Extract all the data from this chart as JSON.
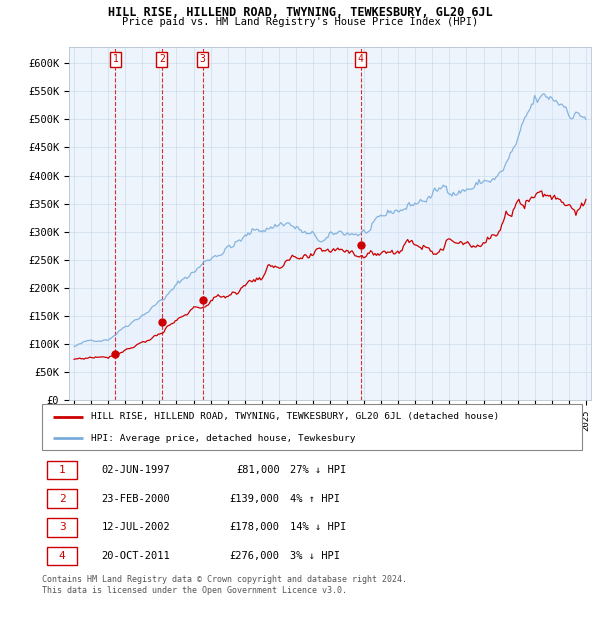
{
  "title": "HILL RISE, HILLEND ROAD, TWYNING, TEWKESBURY, GL20 6JL",
  "subtitle": "Price paid vs. HM Land Registry's House Price Index (HPI)",
  "xlim": [
    1994.7,
    2025.3
  ],
  "ylim": [
    0,
    630000
  ],
  "yticks": [
    0,
    50000,
    100000,
    150000,
    200000,
    250000,
    300000,
    350000,
    400000,
    450000,
    500000,
    550000,
    600000
  ],
  "ytick_labels": [
    "£0",
    "£50K",
    "£100K",
    "£150K",
    "£200K",
    "£250K",
    "£300K",
    "£350K",
    "£400K",
    "£450K",
    "£500K",
    "£550K",
    "£600K"
  ],
  "sale_dates": [
    1997.42,
    2000.14,
    2002.53,
    2011.8
  ],
  "sale_prices": [
    81000,
    139000,
    178000,
    276000
  ],
  "sale_labels": [
    "1",
    "2",
    "3",
    "4"
  ],
  "vline_color": "#cc0000",
  "sale_marker_color": "#cc0000",
  "hpi_line_color": "#7aaddc",
  "price_line_color": "#cc0000",
  "fill_color": "#ddeeff",
  "legend_text_1": "HILL RISE, HILLEND ROAD, TWYNING, TEWKESBURY, GL20 6JL (detached house)",
  "legend_text_2": "HPI: Average price, detached house, Tewkesbury",
  "table_rows": [
    [
      "1",
      "02-JUN-1997",
      "£81,000",
      "27% ↓ HPI"
    ],
    [
      "2",
      "23-FEB-2000",
      "£139,000",
      "4% ↑ HPI"
    ],
    [
      "3",
      "12-JUL-2002",
      "£178,000",
      "14% ↓ HPI"
    ],
    [
      "4",
      "20-OCT-2011",
      "£276,000",
      "3% ↓ HPI"
    ]
  ],
  "footer_text": "Contains HM Land Registry data © Crown copyright and database right 2024.\nThis data is licensed under the Open Government Licence v3.0.",
  "background_color": "#ffffff",
  "grid_color": "#ccddee"
}
